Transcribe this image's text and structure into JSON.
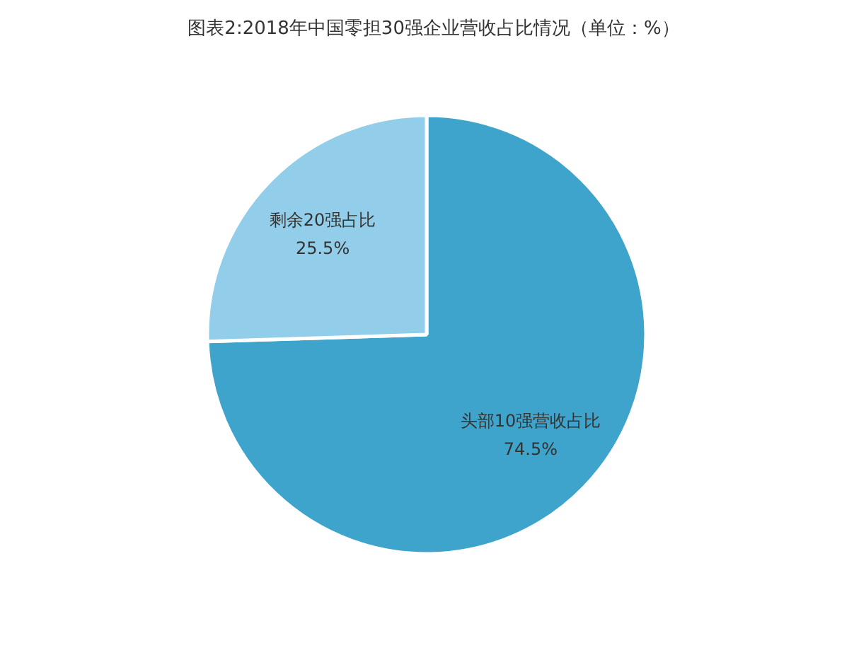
{
  "chart_data": {
    "type": "pie",
    "title": "图表2:2018年中国零担30强企业营收占比情况（单位：%）",
    "categories": [
      "头部10强营收占比",
      "剩余20强占比"
    ],
    "values": [
      74.5,
      25.5
    ],
    "colors": [
      "#3fa4cb",
      "#92cdea"
    ],
    "value_labels": [
      "74.5%",
      "25.5%"
    ]
  }
}
